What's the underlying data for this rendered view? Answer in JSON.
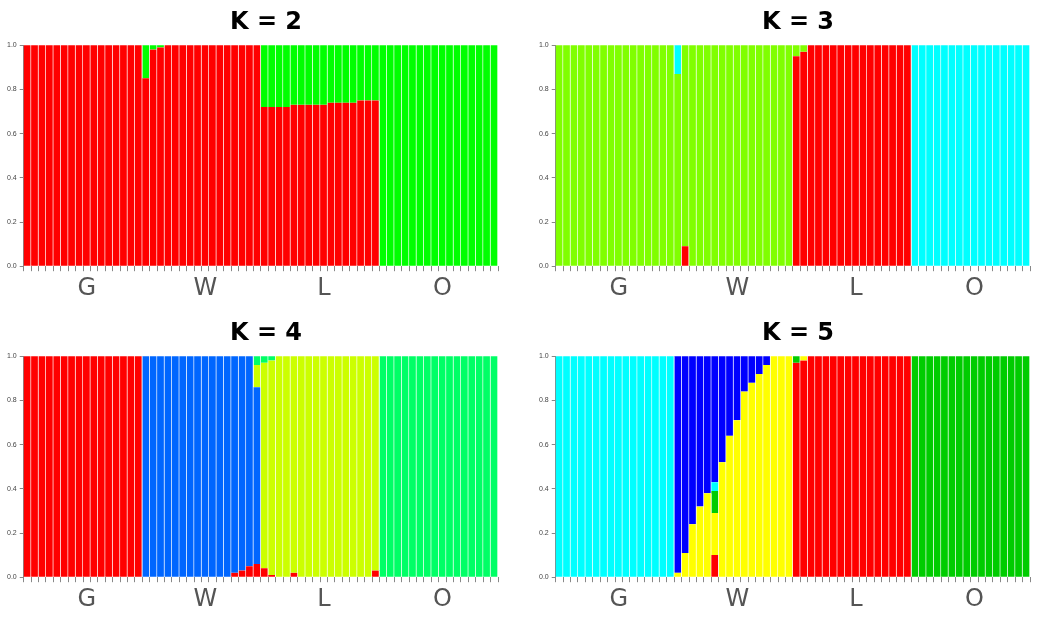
{
  "chart_data": [
    {
      "type": "bar",
      "title": "K = 2",
      "stacked": true,
      "grid": false,
      "categories": [
        null,
        null,
        null,
        null,
        null,
        null,
        null,
        null,
        "G",
        null,
        null,
        null,
        null,
        null,
        null,
        null,
        null,
        null,
        null,
        null,
        null,
        null,
        null,
        null,
        "W",
        null,
        null,
        null,
        null,
        null,
        null,
        null,
        null,
        null,
        null,
        null,
        null,
        null,
        null,
        null,
        "L",
        null,
        null,
        null,
        null,
        null,
        null,
        null,
        null,
        null,
        null,
        null,
        null,
        null,
        null,
        null,
        "O",
        null,
        null,
        null,
        null,
        null,
        null,
        null
      ],
      "ylim": [
        0,
        1
      ],
      "yticks": [
        {
          "value": 0,
          "label": "0.0"
        },
        {
          "value": 0.2,
          "label": "0.2"
        },
        {
          "value": 0.4,
          "label": "0.4"
        },
        {
          "value": 0.6,
          "label": "0.6"
        },
        {
          "value": 0.8,
          "label": "0.8"
        },
        {
          "value": 1,
          "label": "1.0"
        }
      ],
      "series": [
        {
          "color": "#ff0000",
          "values": [
            1,
            1,
            1,
            1,
            1,
            1,
            1,
            1,
            1,
            1,
            1,
            1,
            1,
            1,
            1,
            1,
            0.85,
            0.98,
            0.99,
            1,
            1,
            1,
            1,
            1,
            1,
            1,
            1,
            1,
            1,
            1,
            1,
            1,
            0.72,
            0.72,
            0.72,
            0.72,
            0.73,
            0.73,
            0.73,
            0.73,
            0.73,
            0.74,
            0.74,
            0.74,
            0.74,
            0.75,
            0.75,
            0.75,
            0,
            0,
            0,
            0,
            0,
            0,
            0,
            0,
            0,
            0,
            0,
            0,
            0,
            0,
            0,
            0
          ]
        },
        {
          "color": "#00ff00",
          "values": [
            0,
            0,
            0,
            0,
            0,
            0,
            0,
            0,
            0,
            0,
            0,
            0,
            0,
            0,
            0,
            0,
            0.15,
            0.02,
            0.01,
            0,
            0,
            0,
            0,
            0,
            0,
            0,
            0,
            0,
            0,
            0,
            0,
            0,
            0.28,
            0.28,
            0.28,
            0.28,
            0.27,
            0.27,
            0.27,
            0.27,
            0.27,
            0.26,
            0.26,
            0.26,
            0.26,
            0.25,
            0.25,
            0.25,
            1,
            1,
            1,
            1,
            1,
            1,
            1,
            1,
            1,
            1,
            1,
            1,
            1,
            1,
            1,
            1
          ]
        }
      ]
    },
    {
      "type": "bar",
      "title": "K = 3",
      "stacked": true,
      "grid": false,
      "categories": [
        null,
        null,
        null,
        null,
        null,
        null,
        null,
        null,
        "G",
        null,
        null,
        null,
        null,
        null,
        null,
        null,
        null,
        null,
        null,
        null,
        null,
        null,
        null,
        null,
        "W",
        null,
        null,
        null,
        null,
        null,
        null,
        null,
        null,
        null,
        null,
        null,
        null,
        null,
        null,
        null,
        "L",
        null,
        null,
        null,
        null,
        null,
        null,
        null,
        null,
        null,
        null,
        null,
        null,
        null,
        null,
        null,
        "O",
        null,
        null,
        null,
        null,
        null,
        null,
        null
      ],
      "ylim": [
        0,
        1
      ],
      "yticks": [
        {
          "value": 0,
          "label": "0.0"
        },
        {
          "value": 0.2,
          "label": "0.2"
        },
        {
          "value": 0.4,
          "label": "0.4"
        },
        {
          "value": 0.6,
          "label": "0.6"
        },
        {
          "value": 0.8,
          "label": "0.8"
        },
        {
          "value": 1,
          "label": "1.0"
        }
      ],
      "series": [
        {
          "color": "#ff0000",
          "values": [
            0,
            0,
            0,
            0,
            0,
            0,
            0,
            0,
            0,
            0,
            0,
            0,
            0,
            0,
            0,
            0,
            0,
            0.09,
            0,
            0,
            0,
            0,
            0,
            0,
            0,
            0,
            0,
            0,
            0,
            0,
            0,
            0,
            0.95,
            0.97,
            1,
            1,
            1,
            1,
            1,
            1,
            1,
            1,
            1,
            1,
            1,
            1,
            1,
            1,
            0,
            0,
            0,
            0,
            0,
            0,
            0,
            0,
            0,
            0,
            0,
            0,
            0,
            0,
            0,
            0
          ]
        },
        {
          "color": "#80ff00",
          "values": [
            1,
            1,
            1,
            1,
            1,
            1,
            1,
            1,
            1,
            1,
            1,
            1,
            1,
            1,
            1,
            1,
            0.87,
            0.91,
            1,
            1,
            1,
            1,
            1,
            1,
            1,
            1,
            1,
            1,
            1,
            1,
            1,
            1,
            0.05,
            0.03,
            0,
            0,
            0,
            0,
            0,
            0,
            0,
            0,
            0,
            0,
            0,
            0,
            0,
            0,
            0,
            0,
            0,
            0,
            0,
            0,
            0,
            0,
            0,
            0,
            0,
            0,
            0,
            0,
            0,
            0
          ]
        },
        {
          "color": "#00ffff",
          "values": [
            0,
            0,
            0,
            0,
            0,
            0,
            0,
            0,
            0,
            0,
            0,
            0,
            0,
            0,
            0,
            0,
            0.13,
            0,
            0,
            0,
            0,
            0,
            0,
            0,
            0,
            0,
            0,
            0,
            0,
            0,
            0,
            0,
            0,
            0,
            0,
            0,
            0,
            0,
            0,
            0,
            0,
            0,
            0,
            0,
            0,
            0,
            0,
            0,
            1,
            1,
            1,
            1,
            1,
            1,
            1,
            1,
            1,
            1,
            1,
            1,
            1,
            1,
            1,
            1
          ]
        }
      ]
    },
    {
      "type": "bar",
      "title": "K = 4",
      "stacked": true,
      "grid": false,
      "categories": [
        null,
        null,
        null,
        null,
        null,
        null,
        null,
        null,
        "G",
        null,
        null,
        null,
        null,
        null,
        null,
        null,
        null,
        null,
        null,
        null,
        null,
        null,
        null,
        null,
        "W",
        null,
        null,
        null,
        null,
        null,
        null,
        null,
        null,
        null,
        null,
        null,
        null,
        null,
        null,
        null,
        "L",
        null,
        null,
        null,
        null,
        null,
        null,
        null,
        null,
        null,
        null,
        null,
        null,
        null,
        null,
        null,
        "O",
        null,
        null,
        null,
        null,
        null,
        null,
        null
      ],
      "ylim": [
        0,
        1
      ],
      "yticks": [
        {
          "value": 0,
          "label": "0.0"
        },
        {
          "value": 0.2,
          "label": "0.2"
        },
        {
          "value": 0.4,
          "label": "0.4"
        },
        {
          "value": 0.6,
          "label": "0.6"
        },
        {
          "value": 0.8,
          "label": "0.8"
        },
        {
          "value": 1,
          "label": "1.0"
        }
      ],
      "series": [
        {
          "color": "#ff0000",
          "values": [
            1,
            1,
            1,
            1,
            1,
            1,
            1,
            1,
            1,
            1,
            1,
            1,
            1,
            1,
            1,
            1,
            0,
            0,
            0,
            0,
            0,
            0,
            0,
            0,
            0,
            0,
            0,
            0,
            0.02,
            0.03,
            0.05,
            0.06,
            0.04,
            0.01,
            0,
            0,
            0.02,
            0,
            0,
            0,
            0,
            0,
            0,
            0,
            0,
            0,
            0,
            0.03,
            0,
            0,
            0,
            0,
            0,
            0,
            0,
            0,
            0,
            0,
            0,
            0,
            0,
            0,
            0,
            0
          ]
        },
        {
          "color": "#0066ff",
          "values": [
            0,
            0,
            0,
            0,
            0,
            0,
            0,
            0,
            0,
            0,
            0,
            0,
            0,
            0,
            0,
            0,
            1,
            1,
            1,
            1,
            1,
            1,
            1,
            1,
            1,
            1,
            1,
            1,
            0.98,
            0.97,
            0.95,
            0.8,
            0,
            0,
            0,
            0,
            0,
            0,
            0,
            0,
            0,
            0,
            0,
            0,
            0,
            0,
            0,
            0,
            0,
            0,
            0,
            0,
            0,
            0,
            0,
            0,
            0,
            0,
            0,
            0,
            0,
            0,
            0,
            0
          ]
        },
        {
          "color": "#ccff00",
          "values": [
            0,
            0,
            0,
            0,
            0,
            0,
            0,
            0,
            0,
            0,
            0,
            0,
            0,
            0,
            0,
            0,
            0,
            0,
            0,
            0,
            0,
            0,
            0,
            0,
            0,
            0,
            0,
            0,
            0,
            0,
            0,
            0.1,
            0.93,
            0.97,
            1,
            1,
            0.98,
            1,
            1,
            1,
            1,
            1,
            1,
            1,
            1,
            1,
            1,
            0.97,
            0,
            0,
            0,
            0,
            0,
            0,
            0,
            0,
            0,
            0,
            0,
            0,
            0,
            0,
            0,
            0
          ]
        },
        {
          "color": "#00ff66",
          "values": [
            0,
            0,
            0,
            0,
            0,
            0,
            0,
            0,
            0,
            0,
            0,
            0,
            0,
            0,
            0,
            0,
            0,
            0,
            0,
            0,
            0,
            0,
            0,
            0,
            0,
            0,
            0,
            0,
            0,
            0,
            0,
            0.04,
            0.03,
            0.02,
            0,
            0,
            0,
            0,
            0,
            0,
            0,
            0,
            0,
            0,
            0,
            0,
            0,
            0,
            1,
            1,
            1,
            1,
            1,
            1,
            1,
            1,
            1,
            1,
            1,
            1,
            1,
            1,
            1,
            1
          ]
        }
      ]
    },
    {
      "type": "bar",
      "title": "K = 5",
      "stacked": true,
      "grid": false,
      "categories": [
        null,
        null,
        null,
        null,
        null,
        null,
        null,
        null,
        "G",
        null,
        null,
        null,
        null,
        null,
        null,
        null,
        null,
        null,
        null,
        null,
        null,
        null,
        null,
        null,
        "W",
        null,
        null,
        null,
        null,
        null,
        null,
        null,
        null,
        null,
        null,
        null,
        null,
        null,
        null,
        null,
        "L",
        null,
        null,
        null,
        null,
        null,
        null,
        null,
        null,
        null,
        null,
        null,
        null,
        null,
        null,
        null,
        "O",
        null,
        null,
        null,
        null,
        null,
        null,
        null
      ],
      "ylim": [
        0,
        1
      ],
      "yticks": [
        {
          "value": 0,
          "label": "0.0"
        },
        {
          "value": 0.2,
          "label": "0.2"
        },
        {
          "value": 0.4,
          "label": "0.4"
        },
        {
          "value": 0.6,
          "label": "0.6"
        },
        {
          "value": 0.8,
          "label": "0.8"
        },
        {
          "value": 1,
          "label": "1.0"
        }
      ],
      "series": [
        {
          "color": "#ff0000",
          "values": [
            0,
            0,
            0,
            0,
            0,
            0,
            0,
            0,
            0,
            0,
            0,
            0,
            0,
            0,
            0,
            0,
            0,
            0,
            0,
            0,
            0,
            0.1,
            0,
            0,
            0,
            0,
            0,
            0,
            0,
            0,
            0,
            0,
            0.97,
            0.98,
            1,
            1,
            1,
            1,
            1,
            1,
            1,
            1,
            1,
            1,
            1,
            1,
            1,
            1,
            0,
            0,
            0,
            0,
            0,
            0,
            0,
            0,
            0,
            0,
            0,
            0,
            0,
            0,
            0,
            0
          ]
        },
        {
          "color": "#ffff00",
          "values": [
            0,
            0,
            0,
            0,
            0,
            0,
            0,
            0,
            0,
            0,
            0,
            0,
            0,
            0,
            0,
            0,
            0.02,
            0.11,
            0.24,
            0.32,
            0.38,
            0.19,
            0.52,
            0.64,
            0.71,
            0.84,
            0.88,
            0.92,
            0.96,
            1,
            1,
            1,
            0,
            0.02,
            0,
            0,
            0,
            0,
            0,
            0,
            0,
            0,
            0,
            0,
            0,
            0,
            0,
            0,
            0,
            0,
            0,
            0,
            0,
            0,
            0,
            0,
            0,
            0,
            0,
            0,
            0,
            0,
            0,
            0
          ]
        },
        {
          "color": "#00cc00",
          "values": [
            0,
            0,
            0,
            0,
            0,
            0,
            0,
            0,
            0,
            0,
            0,
            0,
            0,
            0,
            0,
            0,
            0,
            0,
            0,
            0,
            0,
            0.1,
            0,
            0,
            0,
            0,
            0,
            0,
            0,
            0,
            0,
            0,
            0.03,
            0,
            0,
            0,
            0,
            0,
            0,
            0,
            0,
            0,
            0,
            0,
            0,
            0,
            0,
            0,
            1,
            1,
            1,
            1,
            1,
            1,
            1,
            1,
            1,
            1,
            1,
            1,
            1,
            1,
            1,
            1
          ]
        },
        {
          "color": "#00ffff",
          "values": [
            1,
            1,
            1,
            1,
            1,
            1,
            1,
            1,
            1,
            1,
            1,
            1,
            1,
            1,
            1,
            1,
            0,
            0,
            0,
            0,
            0,
            0.04,
            0,
            0,
            0,
            0,
            0,
            0,
            0,
            0,
            0,
            0,
            0,
            0,
            0,
            0,
            0,
            0,
            0,
            0,
            0,
            0,
            0,
            0,
            0,
            0,
            0,
            0,
            0,
            0,
            0,
            0,
            0,
            0,
            0,
            0,
            0,
            0,
            0,
            0,
            0,
            0,
            0,
            0
          ]
        },
        {
          "color": "#0000ff",
          "values": [
            0,
            0,
            0,
            0,
            0,
            0,
            0,
            0,
            0,
            0,
            0,
            0,
            0,
            0,
            0,
            0,
            0.98,
            0.89,
            0.76,
            0.68,
            0.62,
            0.57,
            0.48,
            0.36,
            0.29,
            0.16,
            0.12,
            0.08,
            0.04,
            0,
            0,
            0,
            0,
            0,
            0,
            0,
            0,
            0,
            0,
            0,
            0,
            0,
            0,
            0,
            0,
            0,
            0,
            0,
            0,
            0,
            0,
            0,
            0,
            0,
            0,
            0,
            0,
            0,
            0,
            0,
            0,
            0,
            0,
            0
          ]
        }
      ]
    }
  ]
}
